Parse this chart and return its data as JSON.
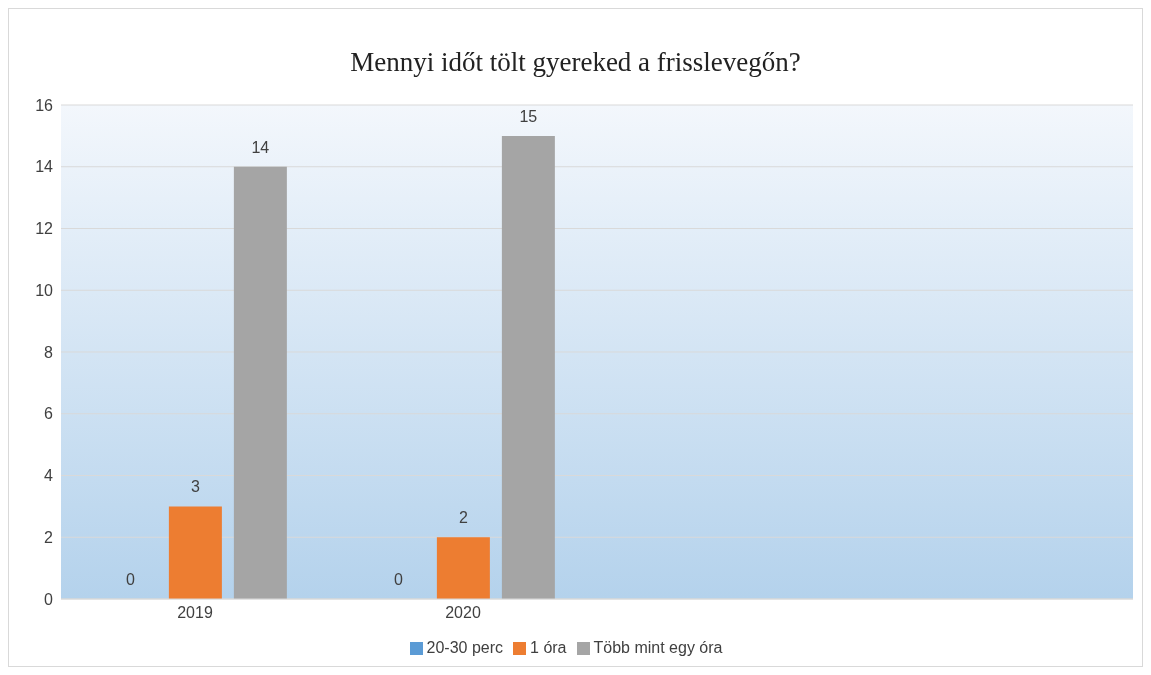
{
  "chart_data": {
    "type": "bar",
    "title": "Mennyi időt tölt gyereked a frisslevegőn?",
    "categories": [
      "2019",
      "2020",
      null,
      null
    ],
    "series": [
      {
        "name": "20-30 perc",
        "color": "#5b9bd5",
        "values": [
          0,
          0,
          null,
          null
        ]
      },
      {
        "name": "1 óra",
        "color": "#ed7d31",
        "values": [
          3,
          2,
          null,
          null
        ]
      },
      {
        "name": "Több mint egy óra",
        "color": "#a5a5a5",
        "values": [
          14,
          15,
          null,
          null
        ]
      }
    ],
    "ylim": [
      0,
      16
    ],
    "yticks": [
      0,
      2,
      4,
      6,
      8,
      10,
      12,
      14,
      16
    ],
    "grid": "y",
    "legend": "bottom",
    "data_labels": true
  }
}
